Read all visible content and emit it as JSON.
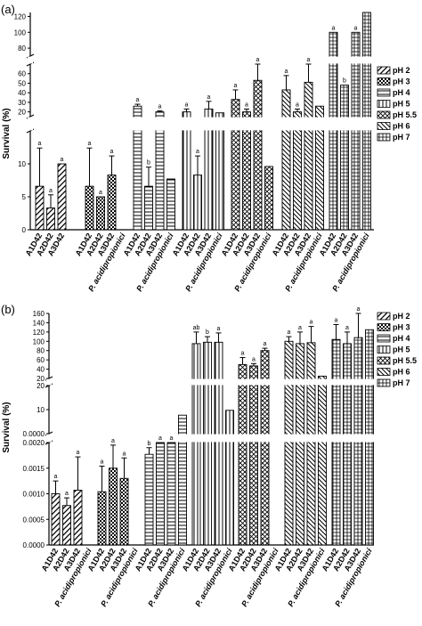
{
  "chart_data": [
    {
      "panel_label": "(a)",
      "type": "bar",
      "ylabel": "Survival (%)",
      "y_segments": [
        {
          "range": [
            0,
            15
          ],
          "ticks": [
            0,
            5,
            10
          ]
        },
        {
          "range": [
            15,
            70
          ],
          "ticks": [
            20,
            30,
            40,
            50,
            60
          ]
        },
        {
          "range": [
            70,
            125
          ],
          "ticks": [
            80,
            100,
            120
          ]
        }
      ],
      "series_names": [
        "pH 2",
        "pH 3",
        "pH 4",
        "pH 5",
        "pH 5.5",
        "pH 6",
        "pH 7"
      ],
      "groups": [
        {
          "series": "pH 2",
          "bars": [
            {
              "label": "A1D42",
              "value": 6.6,
              "err": 5.8,
              "letter": "a"
            },
            {
              "label": "A2D42",
              "value": 3.3,
              "err": 2.0,
              "letter": "a"
            },
            {
              "label": "A3D42",
              "value": 10.0,
              "err": 0,
              "letter": "a"
            }
          ]
        },
        {
          "series": "pH 3",
          "bars": [
            {
              "label": "A1D42",
              "value": 6.6,
              "err": 5.8,
              "letter": "a"
            },
            {
              "label": "A2D42",
              "value": 5.0,
              "err": 0,
              "letter": "a"
            },
            {
              "label": "A3D42",
              "value": 8.3,
              "err": 2.9,
              "letter": "a"
            },
            {
              "label": "P. acidipropionici",
              "value": null,
              "err": 0,
              "letter": ""
            }
          ]
        },
        {
          "series": "pH 4",
          "bars": [
            {
              "label": "A1D42",
              "value": 26,
              "err": 2,
              "letter": "a"
            },
            {
              "label": "A2D42",
              "value": 6.6,
              "err": 2.9,
              "letter": "b"
            },
            {
              "label": "A3D42",
              "value": 20,
              "err": 1,
              "letter": "a"
            },
            {
              "label": "P. acidipropionici",
              "value": 7.7,
              "err": 0,
              "letter": ""
            }
          ]
        },
        {
          "series": "pH 5",
          "bars": [
            {
              "label": "A1D42",
              "value": 20,
              "err": 3,
              "letter": "a"
            },
            {
              "label": "A2D42",
              "value": 8.3,
              "err": 2.9,
              "letter": "a"
            },
            {
              "label": "A3D42",
              "value": 23,
              "err": 8,
              "letter": "a"
            },
            {
              "label": "P. acidipropionici",
              "value": 19,
              "err": 0,
              "letter": ""
            }
          ]
        },
        {
          "series": "pH 5.5",
          "bars": [
            {
              "label": "A1D42",
              "value": 33,
              "err": 10,
              "letter": "a"
            },
            {
              "label": "A2D42",
              "value": 20,
              "err": 3,
              "letter": "a"
            },
            {
              "label": "A3D42",
              "value": 53,
              "err": 22,
              "letter": "a"
            },
            {
              "label": "P. acidipropionici",
              "value": 9.6,
              "err": 0,
              "letter": ""
            }
          ]
        },
        {
          "series": "pH 6",
          "bars": [
            {
              "label": "A1D42",
              "value": 43,
              "err": 15,
              "letter": "a"
            },
            {
              "label": "A2D42",
              "value": 20,
              "err": 3,
              "letter": "a"
            },
            {
              "label": "A3D42",
              "value": 51,
              "err": 20,
              "letter": "a"
            },
            {
              "label": "P. acidipropionici",
              "value": 26,
              "err": 0,
              "letter": ""
            }
          ]
        },
        {
          "series": "pH 7",
          "bars": [
            {
              "label": "A1D42",
              "value": 100,
              "err": 0,
              "letter": "a"
            },
            {
              "label": "A2D42",
              "value": 48,
              "err": 0,
              "letter": "b"
            },
            {
              "label": "A3D42",
              "value": 100,
              "err": 0,
              "letter": "a"
            },
            {
              "label": "P. acidipropionici",
              "value": 126,
              "err": 0,
              "letter": ""
            }
          ]
        }
      ]
    },
    {
      "panel_label": "(b)",
      "type": "bar",
      "ylabel": "Survival (%)",
      "y_segments": [
        {
          "range": [
            0,
            0.002
          ],
          "ticks": [
            0.0,
            0.0005,
            0.001,
            0.0015,
            0.002
          ]
        },
        {
          "range": [
            0.002,
            20
          ],
          "ticks": [
            0,
            10,
            20
          ]
        },
        {
          "range": [
            20,
            160
          ],
          "ticks": [
            20,
            40,
            60,
            80,
            100,
            120,
            140,
            160
          ]
        }
      ],
      "series_names": [
        "pH 2",
        "pH 3",
        "pH 4",
        "pH 5",
        "pH 5.5",
        "pH 6",
        "pH 7"
      ],
      "groups": [
        {
          "series": "pH 2",
          "bars": [
            {
              "label": "A1D42",
              "value": 0.001,
              "err": 0.00025,
              "letter": "a"
            },
            {
              "label": "A2D42",
              "value": 0.00077,
              "err": 0.00015,
              "letter": "a"
            },
            {
              "label": "A3D42",
              "value": 0.00107,
              "err": 0.00065,
              "letter": "a"
            },
            {
              "label": "P. acidipropionici",
              "value": null,
              "err": 0,
              "letter": ""
            }
          ]
        },
        {
          "series": "pH 3",
          "bars": [
            {
              "label": "A1D42",
              "value": 0.00104,
              "err": 0.0005,
              "letter": "a"
            },
            {
              "label": "A2D42",
              "value": 0.0015,
              "err": 0.00045,
              "letter": "a"
            },
            {
              "label": "A3D42",
              "value": 0.0013,
              "err": 0.0004,
              "letter": "a"
            },
            {
              "label": "P. acidipropionici",
              "value": null,
              "err": 0,
              "letter": ""
            }
          ]
        },
        {
          "series": "pH 4",
          "bars": [
            {
              "label": "A1D42",
              "value": 0.00177,
              "err": 0.00013,
              "letter": "b"
            },
            {
              "label": "A2D42",
              "value": 0.002,
              "err": 0,
              "letter": "a"
            },
            {
              "label": "A3D42",
              "value": 0.002,
              "err": 0,
              "letter": "a"
            },
            {
              "label": "P. acidipropionici",
              "value": 7.7,
              "err": 0,
              "letter": ""
            }
          ]
        },
        {
          "series": "pH 5",
          "bars": [
            {
              "label": "A1D42",
              "value": 95,
              "err": 25,
              "letter": "ab"
            },
            {
              "label": "A2D42",
              "value": 98,
              "err": 12,
              "letter": "b"
            },
            {
              "label": "A3D42",
              "value": 98,
              "err": 20,
              "letter": "a"
            },
            {
              "label": "P. acidipropionici",
              "value": 9.7,
              "err": 0,
              "letter": ""
            }
          ]
        },
        {
          "series": "pH 5.5",
          "bars": [
            {
              "label": "A1D42",
              "value": 50,
              "err": 15,
              "letter": "a"
            },
            {
              "label": "A2D42",
              "value": 47,
              "err": 5,
              "letter": "a"
            },
            {
              "label": "A3D42",
              "value": 80,
              "err": 5,
              "letter": "a"
            },
            {
              "label": "P. acidipropionici",
              "value": null,
              "err": 0,
              "letter": ""
            }
          ]
        },
        {
          "series": "pH 6",
          "bars": [
            {
              "label": "A1D42",
              "value": 100,
              "err": 10,
              "letter": "a"
            },
            {
              "label": "A2D42",
              "value": 95,
              "err": 25,
              "letter": "a"
            },
            {
              "label": "A3D42",
              "value": 97,
              "err": 35,
              "letter": "a"
            },
            {
              "label": "P. acidipropionici",
              "value": 25,
              "err": 0,
              "letter": ""
            }
          ]
        },
        {
          "series": "pH 7",
          "bars": [
            {
              "label": "A1D42",
              "value": 104,
              "err": 32,
              "letter": "a"
            },
            {
              "label": "A2D42",
              "value": 95,
              "err": 25,
              "letter": "a"
            },
            {
              "label": "A3D42",
              "value": 108,
              "err": 52,
              "letter": "a"
            },
            {
              "label": "P. acidipropionici",
              "value": 125,
              "err": 0,
              "letter": ""
            }
          ]
        }
      ]
    }
  ]
}
